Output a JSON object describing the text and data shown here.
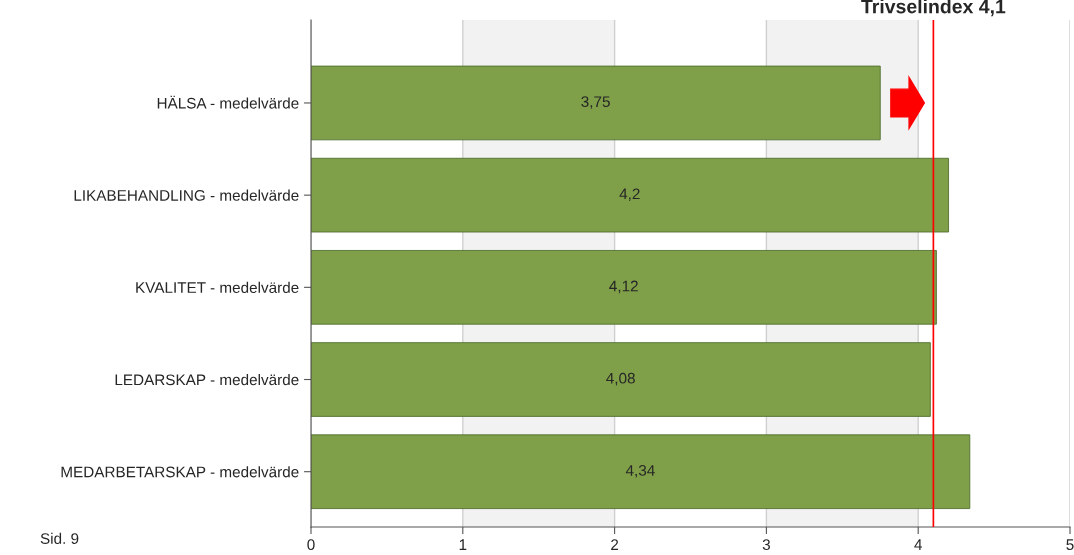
{
  "chart_data": {
    "type": "bar",
    "orientation": "horizontal",
    "categories": [
      "HÄLSA - medelvärde",
      "LIKABEHANDLING - medelvärde",
      "KVALITET - medelvärde",
      "LEDARSKAP - medelvärde",
      "MEDARBETARSKAP - medelvärde"
    ],
    "values": [
      3.75,
      4.2,
      4.12,
      4.08,
      4.34
    ],
    "value_labels": [
      "3,75",
      "4,2",
      "4,12",
      "4,08",
      "4,34"
    ],
    "color": "#7f9f48",
    "xlim": [
      0,
      5
    ],
    "xticks": [
      0,
      1,
      2,
      3,
      4,
      5
    ],
    "grid": "x",
    "bands": [
      {
        "axis": "x",
        "from": 1,
        "to": 2,
        "color": "#f2f2f2"
      },
      {
        "axis": "x",
        "from": 3,
        "to": 4,
        "color": "#f2f2f2"
      }
    ],
    "ref_lines": [
      {
        "axis": "x",
        "value": 4.1,
        "label": "Trivselindex 4,1",
        "color": "#ff0000"
      }
    ],
    "annotations": [
      "Sid. 9"
    ]
  }
}
